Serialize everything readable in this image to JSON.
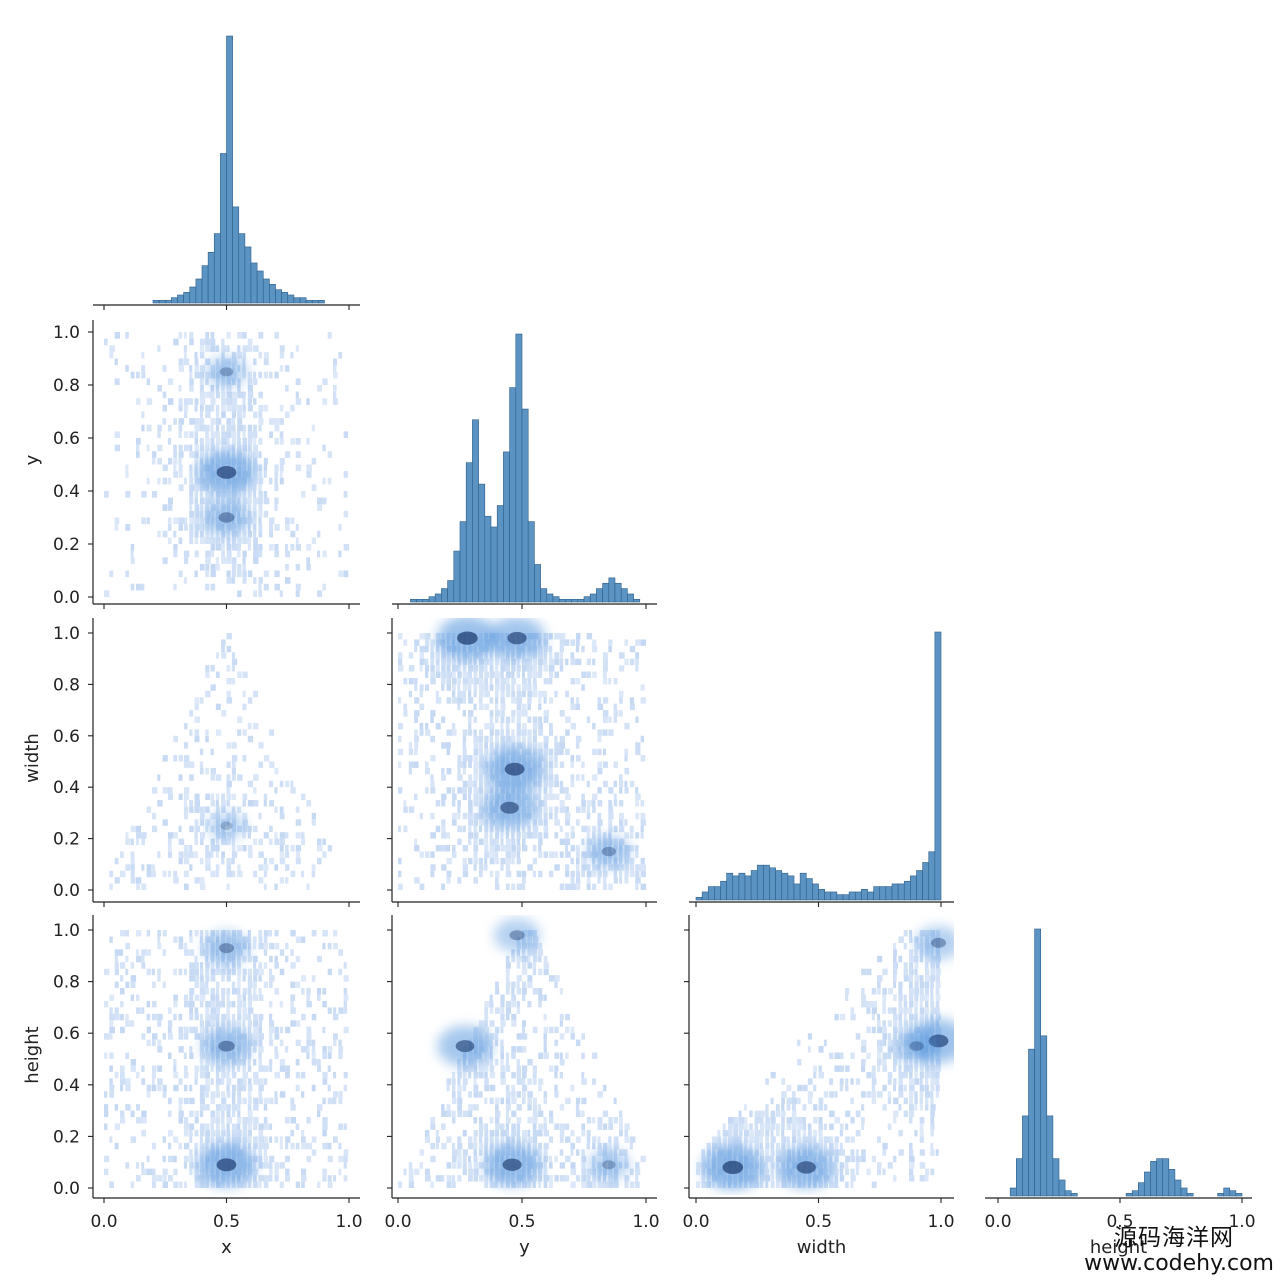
{
  "chart_data": {
    "type": "pairplot",
    "variables": [
      "x",
      "y",
      "width",
      "height"
    ],
    "range": [
      0.0,
      1.0
    ],
    "ticks": [
      "0.0",
      "0.2",
      "0.4",
      "0.6",
      "0.8",
      "1.0"
    ],
    "xticks": [
      "0.0",
      "0.5",
      "1.0"
    ],
    "corner": true,
    "colors": {
      "bar_fill": "#5b93c2",
      "bar_edge": "#2d5f8a",
      "heat_light": "#c4d8f3",
      "heat_mid": "#4f93dd",
      "heat_dark": "#1d3a6e"
    },
    "histograms": {
      "x": {
        "bins": 40,
        "counts": [
          0,
          0,
          0,
          0,
          0,
          0,
          0,
          0,
          1,
          1,
          1,
          2,
          3,
          4,
          6,
          9,
          14,
          19,
          26,
          56,
          100,
          36,
          26,
          21,
          15,
          12,
          9,
          7,
          5,
          4,
          3,
          2,
          2,
          1,
          1,
          1,
          0,
          0,
          0,
          0
        ]
      },
      "y": {
        "bins": 40,
        "counts": [
          0,
          0,
          1,
          1,
          1,
          2,
          3,
          5,
          8,
          19,
          30,
          52,
          68,
          44,
          32,
          28,
          36,
          56,
          80,
          100,
          72,
          30,
          14,
          5,
          3,
          2,
          1,
          1,
          1,
          1,
          2,
          3,
          5,
          7,
          9,
          7,
          5,
          3,
          1,
          0
        ]
      },
      "width": {
        "bins": 40,
        "counts": [
          1,
          3,
          5,
          5,
          7,
          10,
          9,
          10,
          9,
          11,
          13,
          13,
          12,
          11,
          10,
          9,
          6,
          10,
          8,
          6,
          4,
          3,
          3,
          2,
          2,
          3,
          3,
          4,
          3,
          5,
          5,
          5,
          6,
          6,
          7,
          9,
          11,
          14,
          18,
          100
        ]
      },
      "height": {
        "bins": 40,
        "counts": [
          0,
          0,
          3,
          14,
          30,
          55,
          100,
          60,
          30,
          14,
          6,
          2,
          1,
          0,
          0,
          0,
          0,
          0,
          0,
          0,
          0,
          1,
          2,
          5,
          9,
          13,
          14,
          14,
          10,
          6,
          3,
          1,
          0,
          0,
          0,
          0,
          1,
          3,
          2,
          1
        ]
      }
    },
    "joint_hotspots": {
      "y_vs_x": [
        {
          "x": 0.5,
          "y": 0.47,
          "level": 0.85
        },
        {
          "x": 0.5,
          "y": 0.85,
          "level": 0.4
        },
        {
          "x": 0.5,
          "y": 0.3,
          "level": 0.55
        }
      ],
      "width_vs_x": [
        {
          "x": 0.5,
          "y": 0.25,
          "level": 0.3
        }
      ],
      "width_vs_y": [
        {
          "x": 0.28,
          "y": 0.98,
          "level": 0.9
        },
        {
          "x": 0.48,
          "y": 0.98,
          "level": 0.8
        },
        {
          "x": 0.45,
          "y": 0.32,
          "level": 0.75
        },
        {
          "x": 0.47,
          "y": 0.47,
          "level": 0.85
        },
        {
          "x": 0.85,
          "y": 0.15,
          "level": 0.45
        }
      ],
      "height_vs_x": [
        {
          "x": 0.5,
          "y": 0.09,
          "level": 0.85
        },
        {
          "x": 0.5,
          "y": 0.93,
          "level": 0.5
        },
        {
          "x": 0.5,
          "y": 0.55,
          "level": 0.6
        }
      ],
      "height_vs_y": [
        {
          "x": 0.46,
          "y": 0.09,
          "level": 0.8
        },
        {
          "x": 0.27,
          "y": 0.55,
          "level": 0.75
        },
        {
          "x": 0.48,
          "y": 0.98,
          "level": 0.5
        },
        {
          "x": 0.85,
          "y": 0.09,
          "level": 0.4
        }
      ],
      "height_vs_width": [
        {
          "x": 0.15,
          "y": 0.08,
          "level": 0.9
        },
        {
          "x": 0.45,
          "y": 0.08,
          "level": 0.8
        },
        {
          "x": 0.99,
          "y": 0.57,
          "level": 0.85
        },
        {
          "x": 0.99,
          "y": 0.95,
          "level": 0.5
        },
        {
          "x": 0.9,
          "y": 0.55,
          "level": 0.45
        }
      ]
    }
  },
  "watermark": {
    "line1": "源码海洋网",
    "line2": "www.codehy.com"
  }
}
